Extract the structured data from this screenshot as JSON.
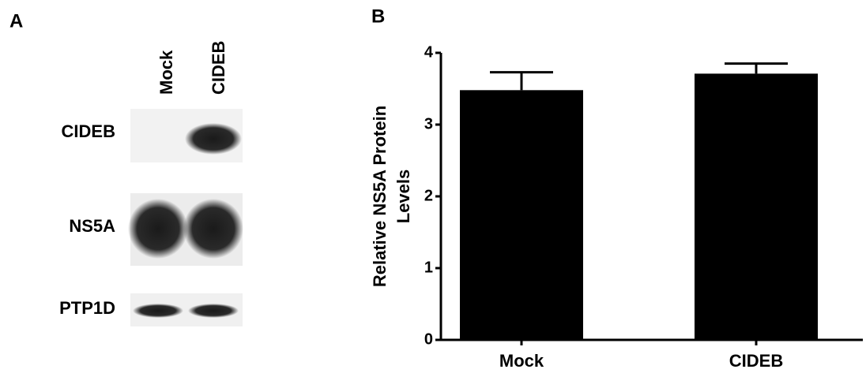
{
  "blot": {
    "panel_label": "A",
    "lanes": [
      "Mock",
      "CIDEB"
    ],
    "rows": [
      "CIDEB",
      "NS5A",
      "PTP1D"
    ]
  },
  "chart_data": {
    "type": "bar",
    "panel_label": "B",
    "ylabel": [
      "Relative NS5A Protein",
      "Levels"
    ],
    "categories": [
      "Mock",
      "CIDEB"
    ],
    "values": [
      3.48,
      3.71
    ],
    "errors": [
      0.25,
      0.14
    ],
    "color": "#000000",
    "ylim": [
      0,
      4
    ],
    "yticks": [
      0,
      1,
      2,
      3,
      4
    ]
  }
}
